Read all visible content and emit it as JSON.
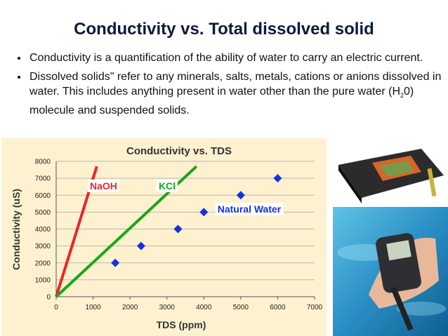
{
  "slide": {
    "title": "Conductivity vs. Total dissolved solid",
    "bullets": [
      {
        "text": "Conductivity is a quantification of the ability of water to carry an electric current."
      },
      {
        "text": "Dissolved solids\" refer to any minerals, salts, metals, cations or anions dissolved in water. This includes anything present in water other than the pure water (H",
        "subscript": "2",
        "text_after": "0) molecule and suspended solids."
      }
    ]
  },
  "chart": {
    "type": "line",
    "title": "Conductivity vs. TDS",
    "x_label": "TDS (ppm)",
    "y_label": "Conductivity (uS)",
    "xlim": [
      0,
      7000
    ],
    "ylim": [
      0,
      8000
    ],
    "xticks": [
      0,
      1000,
      2000,
      3000,
      4000,
      5000,
      6000,
      7000
    ],
    "yticks": [
      0,
      1000,
      2000,
      3000,
      4000,
      5000,
      6000,
      7000,
      8000
    ],
    "grid": true,
    "series": [
      {
        "name": "NaOH",
        "color": "#e8262b",
        "type": "line",
        "x": [
          0,
          1100
        ],
        "y": [
          0,
          7700
        ]
      },
      {
        "name": "KCl",
        "color": "#1aa61a",
        "type": "line",
        "x": [
          0,
          3800
        ],
        "y": [
          0,
          7700
        ]
      },
      {
        "name": "Natural Water",
        "color": "#1432e0",
        "type": "scatter",
        "x": [
          1600,
          2300,
          3300,
          4000,
          5000,
          6000
        ],
        "y": [
          2000,
          3000,
          4000,
          5000,
          6000,
          7000
        ]
      }
    ]
  }
}
